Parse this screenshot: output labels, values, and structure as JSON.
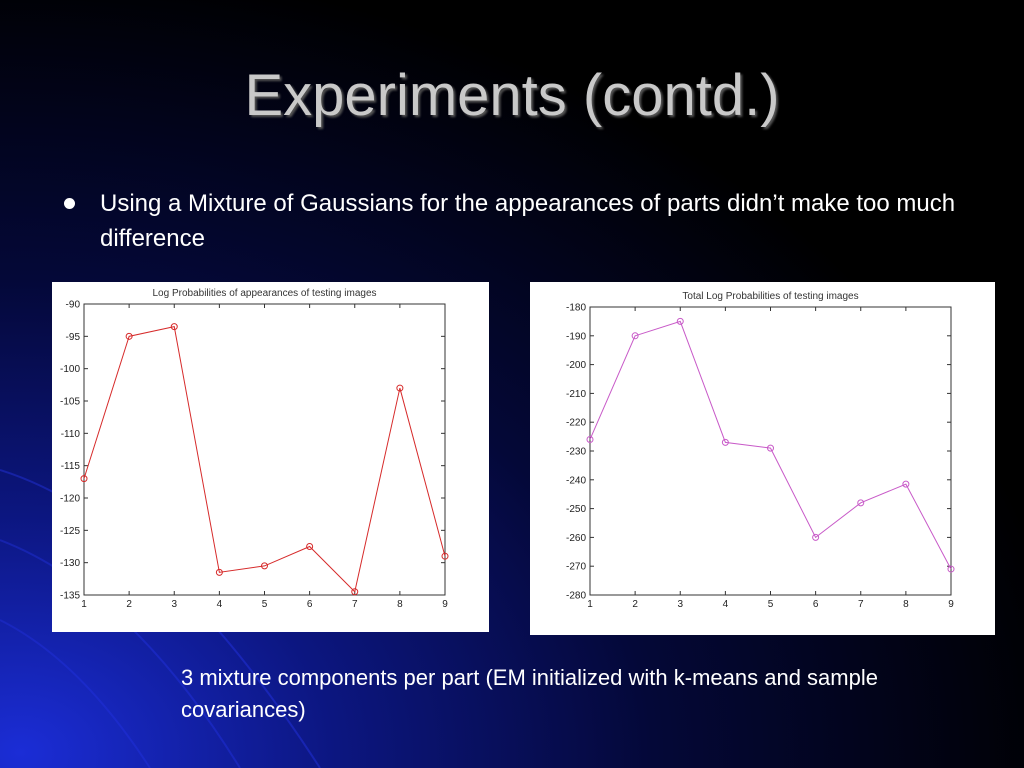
{
  "slide": {
    "title": "Experiments (contd.)",
    "bullet": "Using a Mixture of Gaussians for the appearances of parts didn’t make too much difference",
    "caption": "3 mixture components per part (EM initialized with k-means and sample covariances)"
  },
  "chart_data": [
    {
      "type": "line",
      "title": "Log Probabilities of appearances of testing images",
      "xlabel": "",
      "ylabel": "",
      "x": [
        1,
        2,
        3,
        4,
        5,
        6,
        7,
        8,
        9
      ],
      "series": [
        {
          "values": [
            -117,
            -95,
            -93.5,
            -131.5,
            -130.5,
            -127.5,
            -134.5,
            -103,
            -129
          ],
          "color": "#d62a2a",
          "marker": "circle"
        }
      ],
      "xlim": [
        1,
        9
      ],
      "ylim": [
        -135,
        -90
      ],
      "xticks": [
        1,
        2,
        3,
        4,
        5,
        6,
        7,
        8,
        9
      ],
      "yticks": [
        -90,
        -95,
        -100,
        -105,
        -110,
        -115,
        -120,
        -125,
        -130,
        -135
      ],
      "grid": false
    },
    {
      "type": "line",
      "title": "Total Log Probabilities of testing images",
      "xlabel": "",
      "ylabel": "",
      "x": [
        1,
        2,
        3,
        4,
        5,
        6,
        7,
        8,
        9
      ],
      "series": [
        {
          "values": [
            -226,
            -190,
            -185,
            -227,
            -229,
            -260,
            -248,
            -241.5,
            -271
          ],
          "color": "#c85ac8",
          "marker": "circle"
        }
      ],
      "xlim": [
        1,
        9
      ],
      "ylim": [
        -280,
        -180
      ],
      "xticks": [
        1,
        2,
        3,
        4,
        5,
        6,
        7,
        8,
        9
      ],
      "yticks": [
        -180,
        -190,
        -200,
        -210,
        -220,
        -230,
        -240,
        -250,
        -260,
        -270,
        -280
      ],
      "grid": false
    }
  ]
}
